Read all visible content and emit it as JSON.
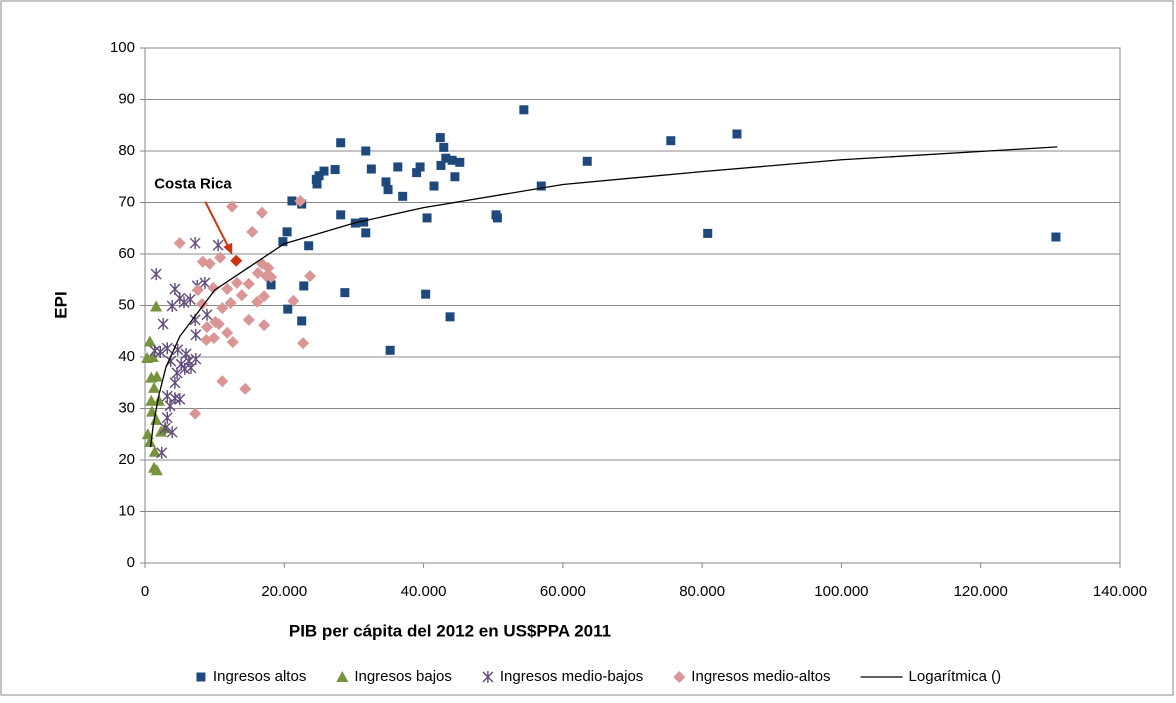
{
  "chart_data": {
    "type": "scatter",
    "x_label": "PIB per cápita del 2012 en US$PPA 2011",
    "y_label": "EPI",
    "xlim": [
      0,
      140000
    ],
    "ylim": [
      0,
      100
    ],
    "xticks": [
      0,
      {
        "value": 20000,
        "label": "20.000"
      },
      {
        "value": 40000,
        "label": "40.000"
      },
      {
        "value": 60000,
        "label": "60.000"
      },
      {
        "value": 80000,
        "label": "80.000"
      },
      {
        "value": 100000,
        "label": "100.000"
      },
      {
        "value": 120000,
        "label": "120.000"
      },
      {
        "value": 140000,
        "label": "140.000"
      }
    ],
    "yticks": [
      0,
      10,
      20,
      30,
      40,
      50,
      60,
      70,
      80,
      90,
      100
    ],
    "grid": true,
    "legend": "bottom",
    "series": [
      {
        "name": "Ingresos altos",
        "color": "#1f497d",
        "marker": "square",
        "x": [
          54400,
          75500,
          85000,
          63500,
          56900,
          80800,
          130800,
          50400,
          50600,
          42400,
          42900,
          43200,
          42500,
          44100,
          45200,
          44500,
          41500,
          40500,
          40300,
          43800,
          39500,
          39000,
          36300,
          37000,
          34600,
          34900,
          32500,
          31700,
          30200,
          31400,
          31700,
          35200,
          28100,
          27300,
          28100,
          28700,
          25700,
          25000,
          24600,
          24700,
          22500,
          21100,
          20400,
          19800,
          23500,
          22800,
          22500,
          20500,
          18100
        ],
        "values": [
          88,
          82,
          83.3,
          78,
          73.2,
          64,
          63.3,
          67.6,
          67,
          82.6,
          80.7,
          78.6,
          77.2,
          78.2,
          77.8,
          75,
          73.2,
          67,
          52.2,
          47.8,
          76.9,
          75.8,
          76.9,
          71.2,
          74,
          72.5,
          76.5,
          80,
          66,
          66.2,
          64.1,
          41.3,
          81.6,
          76.4,
          67.6,
          52.5,
          76.1,
          75.2,
          74.5,
          73.6,
          69.7,
          70.3,
          64.3,
          62.4,
          61.6,
          53.8,
          47,
          49.3,
          54
        ]
      },
      {
        "name": "Ingresos bajos",
        "color": "#77933c",
        "marker": "triangle",
        "x": [
          1600,
          700,
          1100,
          300,
          900,
          1700,
          1300,
          2000,
          1000,
          1600,
          2300,
          400,
          700,
          1400,
          1300,
          1700,
          2900,
          900
        ],
        "values": [
          49.8,
          43,
          40,
          39.8,
          36,
          36.2,
          34,
          31.5,
          29.4,
          27.8,
          25.5,
          25,
          23.5,
          21.6,
          18.5,
          18,
          26.2,
          31.5
        ]
      },
      {
        "name": "Ingresos medio-bajos",
        "color": "#604a7b",
        "marker": "x",
        "x": [
          1600,
          7200,
          10500,
          4300,
          3900,
          5000,
          6500,
          5600,
          7500,
          8600,
          2600,
          1400,
          2200,
          3200,
          4700,
          5900,
          3700,
          5200,
          6300,
          7300,
          6600,
          5700,
          4600,
          4300,
          3200,
          4300,
          5000,
          3600,
          3200,
          2900,
          3900,
          2400,
          7200,
          8900,
          7300
        ],
        "values": [
          56.1,
          62.1,
          61.7,
          53.2,
          49.9,
          51.4,
          51.2,
          50.6,
          53.8,
          54.4,
          46.4,
          41.2,
          41,
          41.7,
          41.4,
          40.6,
          39.2,
          38.6,
          39.2,
          39.6,
          37.9,
          37.7,
          36.9,
          35,
          32.4,
          32,
          31.8,
          30.5,
          28.2,
          26.2,
          25.4,
          21.4,
          47.2,
          48.2,
          44.3
        ]
      },
      {
        "name": "Ingresos medio-altos",
        "color": "#d99694",
        "marker": "diamond",
        "x": [
          5000,
          12500,
          16800,
          22300,
          15400,
          10800,
          9300,
          8300,
          16800,
          17700,
          18100,
          16200,
          23700,
          14900,
          13900,
          13200,
          11800,
          17100,
          16100,
          12300,
          11100,
          10100,
          8900,
          10600,
          11800,
          9900,
          8800,
          12600,
          21300,
          14900,
          17100,
          22700,
          11100,
          14400,
          7200,
          17400,
          7600,
          9800,
          8200
        ],
        "values": [
          62.1,
          69.2,
          68,
          70.3,
          64.3,
          59.3,
          58.1,
          58.5,
          58.1,
          57.3,
          55.5,
          56.3,
          55.7,
          54.2,
          52,
          54.4,
          53.2,
          51.8,
          50.7,
          50.5,
          49.5,
          46.8,
          45.8,
          46.4,
          44.7,
          43.7,
          43.3,
          42.9,
          50.9,
          47.2,
          46.2,
          42.7,
          35.3,
          33.8,
          29,
          55.7,
          53,
          53.4,
          50.3
        ]
      },
      {
        "name": "Logarítmica ()",
        "color": "#000000",
        "marker": "line",
        "x": [
          800,
          1200,
          2000,
          3000,
          5000,
          10000,
          20000,
          30000,
          40000,
          60000,
          80000,
          100000,
          131000
        ],
        "values": [
          22.5,
          27,
          32.6,
          38,
          44,
          53,
          62,
          66,
          69,
          73.5,
          76,
          78.3,
          80.8
        ]
      }
    ],
    "annotation": {
      "text": "Costa Rica",
      "x": 13100,
      "y": 58.7,
      "color": "#cc3311"
    }
  }
}
